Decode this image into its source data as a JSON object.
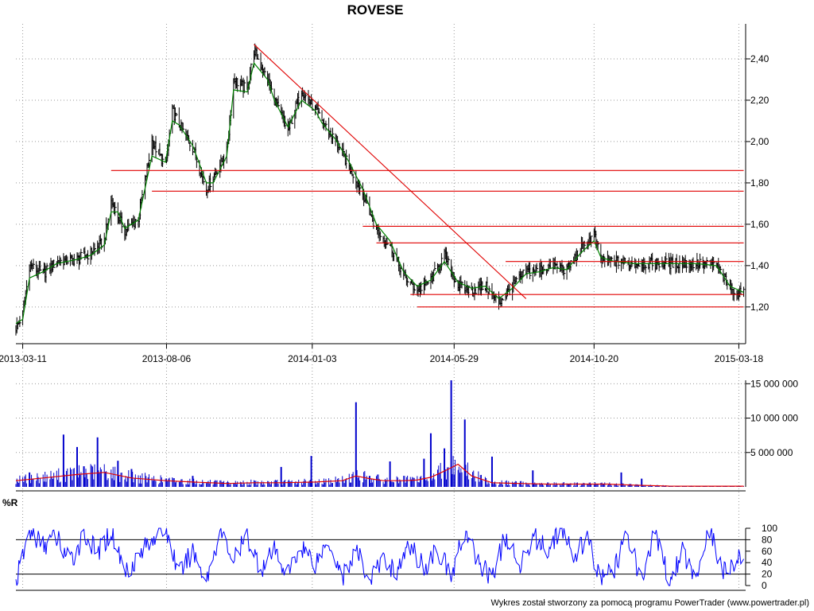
{
  "title": "ROVESE",
  "footer": "Wykres został stworzony za pomocą programu PowerTrader (www.powertrader.pl)",
  "colors": {
    "price_bar": "#000000",
    "moving_average": "#008000",
    "trendline": "#e00000",
    "volume_bar": "#0000cc",
    "volume_average": "#e00000",
    "williams_r": "#0000ff",
    "reference_line": "#000000"
  },
  "chart_data": [
    {
      "type": "line",
      "panel": "price",
      "title": "ROVESE",
      "x_ticks": [
        "2013-03-11",
        "2013-08-06",
        "2014-01-03",
        "2014-05-29",
        "2014-10-20",
        "2015-03-18"
      ],
      "x_range": [
        "2013-03-04",
        "2015-03-25"
      ],
      "y_ticks": [
        "1,20",
        "1,40",
        "1,60",
        "1,80",
        "2,00",
        "2,20",
        "2,40"
      ],
      "ylim": [
        1.03,
        2.5
      ],
      "grid": true,
      "series": [
        {
          "style": "ohlc_bars",
          "x": [
            "2013-03-04",
            "2013-03-11",
            "2013-03-18",
            "2013-04-01",
            "2013-04-15",
            "2013-05-06",
            "2013-05-20",
            "2013-06-03",
            "2013-06-10",
            "2013-06-17",
            "2013-06-24",
            "2013-07-08",
            "2013-07-22",
            "2013-08-05",
            "2013-08-12",
            "2013-08-19",
            "2013-09-02",
            "2013-09-16",
            "2013-09-23",
            "2013-10-07",
            "2013-10-14",
            "2013-10-28",
            "2013-11-04",
            "2013-11-18",
            "2013-11-25",
            "2013-12-09",
            "2013-12-23",
            "2014-01-06",
            "2014-01-13",
            "2014-01-27",
            "2014-02-10",
            "2014-02-24",
            "2014-03-10",
            "2014-03-24",
            "2014-04-07",
            "2014-04-21",
            "2014-05-05",
            "2014-05-19",
            "2014-06-02",
            "2014-06-16",
            "2014-06-30",
            "2014-07-14",
            "2014-07-28",
            "2014-08-11",
            "2014-08-25",
            "2014-09-08",
            "2014-09-22",
            "2014-10-06",
            "2014-10-20",
            "2014-10-27",
            "2014-11-10",
            "2014-12-01",
            "2015-01-05",
            "2015-02-02",
            "2015-02-23",
            "2015-03-09",
            "2015-03-23"
          ],
          "values": [
            1.1,
            1.16,
            1.4,
            1.36,
            1.42,
            1.43,
            1.46,
            1.52,
            1.71,
            1.64,
            1.57,
            1.63,
            2.0,
            1.88,
            2.15,
            2.08,
            1.97,
            1.77,
            1.83,
            1.95,
            2.3,
            2.25,
            2.44,
            2.3,
            2.2,
            2.05,
            2.25,
            2.15,
            2.1,
            2.0,
            1.88,
            1.75,
            1.57,
            1.5,
            1.35,
            1.28,
            1.33,
            1.45,
            1.3,
            1.28,
            1.3,
            1.22,
            1.3,
            1.37,
            1.38,
            1.4,
            1.38,
            1.48,
            1.55,
            1.43,
            1.42,
            1.41,
            1.41,
            1.41,
            1.4,
            1.29,
            1.26
          ]
        },
        {
          "name": "",
          "style": "moving_average",
          "x": [
            "2013-03-04",
            "2013-03-11",
            "2013-03-18",
            "2013-04-01",
            "2013-04-15",
            "2013-05-06",
            "2013-05-20",
            "2013-06-03",
            "2013-06-10",
            "2013-06-17",
            "2013-06-24",
            "2013-07-08",
            "2013-07-22",
            "2013-08-05",
            "2013-08-12",
            "2013-08-19",
            "2013-09-02",
            "2013-09-16",
            "2013-09-23",
            "2013-10-07",
            "2013-10-14",
            "2013-10-28",
            "2013-11-04",
            "2013-11-18",
            "2013-11-25",
            "2013-12-09",
            "2013-12-23",
            "2014-01-06",
            "2014-01-13",
            "2014-01-27",
            "2014-02-10",
            "2014-02-24",
            "2014-03-10",
            "2014-03-24",
            "2014-04-07",
            "2014-04-21",
            "2014-05-05",
            "2014-05-19",
            "2014-06-02",
            "2014-06-16",
            "2014-06-30",
            "2014-07-14",
            "2014-07-28",
            "2014-08-11",
            "2014-08-25",
            "2014-09-08",
            "2014-09-22",
            "2014-10-06",
            "2014-10-20",
            "2014-10-27",
            "2014-11-10",
            "2014-12-01",
            "2015-01-05",
            "2015-02-02",
            "2015-02-23",
            "2015-03-09",
            "2015-03-23"
          ],
          "values": [
            1.12,
            1.14,
            1.34,
            1.37,
            1.41,
            1.43,
            1.45,
            1.5,
            1.66,
            1.66,
            1.58,
            1.62,
            1.93,
            1.9,
            2.1,
            2.08,
            1.98,
            1.8,
            1.8,
            1.93,
            2.25,
            2.24,
            2.38,
            2.3,
            2.2,
            2.07,
            2.2,
            2.15,
            2.09,
            2.01,
            1.9,
            1.77,
            1.6,
            1.52,
            1.37,
            1.3,
            1.33,
            1.42,
            1.32,
            1.29,
            1.3,
            1.24,
            1.29,
            1.36,
            1.37,
            1.39,
            1.38,
            1.46,
            1.52,
            1.44,
            1.42,
            1.41,
            1.41,
            1.41,
            1.4,
            1.3,
            1.27
          ]
        }
      ],
      "trendlines": [
        {
          "x": [
            "2013-11-04",
            "2014-08-11"
          ],
          "y": [
            2.47,
            1.24
          ]
        },
        {
          "x": [
            "2013-06-10",
            "2015-03-23"
          ],
          "y": [
            1.86,
            1.86
          ]
        },
        {
          "x": [
            "2013-07-22",
            "2015-03-23"
          ],
          "y": [
            1.76,
            1.76
          ]
        },
        {
          "x": [
            "2014-02-24",
            "2015-03-23"
          ],
          "y": [
            1.59,
            1.59
          ]
        },
        {
          "x": [
            "2014-03-10",
            "2015-03-23"
          ],
          "y": [
            1.51,
            1.51
          ]
        },
        {
          "x": [
            "2014-07-21",
            "2015-03-23"
          ],
          "y": [
            1.42,
            1.42
          ]
        },
        {
          "x": [
            "2014-04-14",
            "2015-03-23"
          ],
          "y": [
            1.26,
            1.26
          ]
        },
        {
          "x": [
            "2014-04-21",
            "2015-03-23"
          ],
          "y": [
            1.2,
            1.2
          ]
        }
      ]
    },
    {
      "type": "bar",
      "panel": "volume",
      "y_ticks": [
        "5 000 000",
        "10 000 000",
        "15 000 000"
      ],
      "ylim": [
        0,
        15500000
      ],
      "grid": true,
      "spikes": {
        "x": [
          "2013-03-18",
          "2013-04-22",
          "2013-05-06",
          "2013-05-13",
          "2013-05-27",
          "2013-06-17",
          "2013-07-01",
          "2013-09-02",
          "2013-12-02",
          "2014-01-02",
          "2014-02-17",
          "2014-03-03",
          "2014-03-24",
          "2014-04-28",
          "2014-05-05",
          "2014-05-19",
          "2014-05-26",
          "2014-06-09",
          "2014-07-07",
          "2014-08-18",
          "2014-11-17",
          "2014-12-08"
        ],
        "values": [
          2100000,
          7600000,
          5800000,
          3000000,
          7200000,
          3800000,
          2600000,
          1600000,
          2900000,
          4500000,
          12300000,
          1600000,
          3700000,
          4100000,
          7800000,
          5600000,
          15500000,
          9800000,
          4400000,
          2400000,
          2100000,
          1200000
        ]
      },
      "series": [
        {
          "name": "",
          "style": "moving_average",
          "x": [
            "2013-03-04",
            "2013-04-01",
            "2013-05-06",
            "2013-06-03",
            "2013-07-01",
            "2013-08-05",
            "2013-09-02",
            "2013-10-07",
            "2013-11-04",
            "2013-12-02",
            "2014-01-06",
            "2014-02-03",
            "2014-02-17",
            "2014-03-03",
            "2014-03-17",
            "2014-04-07",
            "2014-04-21",
            "2014-05-05",
            "2014-05-19",
            "2014-06-02",
            "2014-06-16",
            "2014-07-07",
            "2014-08-04",
            "2014-09-01",
            "2014-10-06",
            "2014-11-03",
            "2014-12-01",
            "2015-01-05",
            "2015-02-02",
            "2015-03-23"
          ],
          "values": [
            900000,
            1300000,
            1800000,
            2100000,
            1300000,
            900000,
            700000,
            500000,
            600000,
            600000,
            700000,
            900000,
            1600000,
            1200000,
            900000,
            900000,
            1000000,
            1400000,
            2300000,
            3300000,
            1600000,
            600000,
            500000,
            400000,
            400000,
            400000,
            250000,
            120000,
            100000,
            100000
          ]
        }
      ]
    },
    {
      "type": "line",
      "panel": "williams_r",
      "title": "%R",
      "y_ticks": [
        "0",
        "20",
        "40",
        "60",
        "80",
        "100"
      ],
      "ylim": [
        0,
        100
      ],
      "reference_lines": [
        20,
        80
      ],
      "grid": true,
      "series": [
        {
          "name": "",
          "x": [
            "2013-03-04",
            "2013-03-18",
            "2013-04-01",
            "2013-04-15",
            "2013-04-29",
            "2013-05-13",
            "2013-05-27",
            "2013-06-10",
            "2013-06-24",
            "2013-07-08",
            "2013-07-22",
            "2013-08-05",
            "2013-08-19",
            "2013-09-02",
            "2013-09-16",
            "2013-09-30",
            "2013-10-14",
            "2013-10-28",
            "2013-11-11",
            "2013-11-25",
            "2013-12-09",
            "2013-12-23",
            "2014-01-06",
            "2014-01-20",
            "2014-02-03",
            "2014-02-17",
            "2014-03-03",
            "2014-03-17",
            "2014-03-31",
            "2014-04-14",
            "2014-04-28",
            "2014-05-12",
            "2014-05-26",
            "2014-06-09",
            "2014-06-23",
            "2014-07-07",
            "2014-07-21",
            "2014-08-04",
            "2014-08-18",
            "2014-09-01",
            "2014-09-15",
            "2014-09-29",
            "2014-10-13",
            "2014-10-27",
            "2014-11-10",
            "2014-11-24",
            "2014-12-08",
            "2014-12-22",
            "2015-01-05",
            "2015-01-19",
            "2015-02-02",
            "2015-02-16",
            "2015-03-02",
            "2015-03-16",
            "2015-03-23"
          ],
          "values": [
            5,
            95,
            70,
            85,
            40,
            90,
            55,
            95,
            25,
            50,
            85,
            100,
            20,
            60,
            10,
            95,
            45,
            85,
            30,
            60,
            20,
            70,
            40,
            80,
            15,
            60,
            10,
            45,
            25,
            70,
            30,
            65,
            15,
            95,
            40,
            15,
            85,
            30,
            90,
            60,
            100,
            50,
            80,
            10,
            30,
            90,
            5,
            95,
            10,
            60,
            15,
            100,
            20,
            50,
            30
          ]
        }
      ]
    }
  ]
}
